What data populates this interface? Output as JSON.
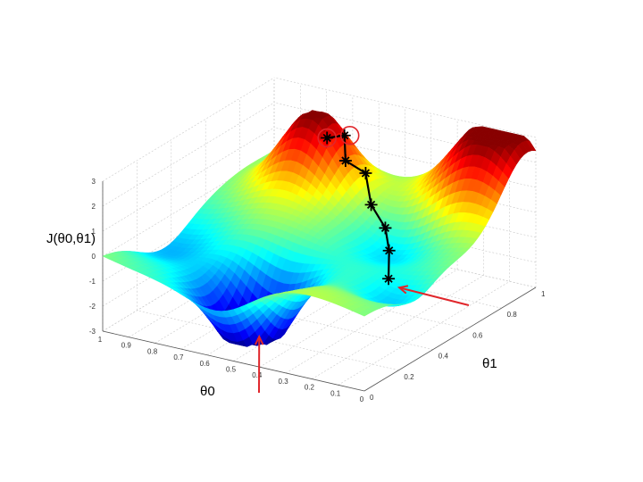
{
  "chart_data": {
    "type": "surface",
    "title": "",
    "axes": {
      "zlabel": "J(θ0,θ1)",
      "xlabel": "θ0",
      "ylabel": "θ1",
      "z_ticks": [
        "3",
        "2",
        "1",
        "0",
        "-1",
        "-2",
        "-3"
      ],
      "z_values": [
        3,
        2,
        1,
        0,
        -1,
        -2,
        -3
      ],
      "x_ticks": [
        "1",
        "0.9",
        "0.8",
        "0.7",
        "0.6",
        "0.5",
        "0.4",
        "0.3",
        "0.2",
        "0.1",
        "0"
      ],
      "x_values": [
        1,
        0.9,
        0.8,
        0.7,
        0.6,
        0.5,
        0.4,
        0.3,
        0.2,
        0.1,
        0
      ],
      "y_ticks": [
        "1",
        "0.8",
        "0.6",
        "0.4",
        "0.2",
        "0"
      ],
      "y_values": [
        1,
        0.8,
        0.6,
        0.4,
        0.2,
        0
      ],
      "zlim": [
        -3,
        3
      ],
      "xlim": [
        0,
        1
      ],
      "ylim": [
        0,
        1
      ],
      "grid": true
    },
    "colormap": "jet",
    "path": {
      "description": "gradient descent steps",
      "points": [
        {
          "theta0": 0.68,
          "theta1": 0.82,
          "J": 2.1
        },
        {
          "theta0": 0.62,
          "theta1": 0.83,
          "J": 2.3
        },
        {
          "theta0": 0.57,
          "theta1": 0.76,
          "J": 1.7
        },
        {
          "theta0": 0.48,
          "theta1": 0.74,
          "J": 1.5
        },
        {
          "theta0": 0.4,
          "theta1": 0.65,
          "J": 0.8
        },
        {
          "theta0": 0.3,
          "theta1": 0.58,
          "J": 0.4
        },
        {
          "theta0": 0.22,
          "theta1": 0.48,
          "J": 0.1
        },
        {
          "theta0": 0.15,
          "theta1": 0.37,
          "J": -0.4
        }
      ]
    },
    "annotations": [
      {
        "type": "arrow",
        "target": "global minimum",
        "color": "#e0262b"
      },
      {
        "type": "arrow",
        "target": "path start",
        "color": "#e0262b"
      },
      {
        "type": "circle",
        "target": "path end",
        "color": "#e0262b"
      }
    ]
  }
}
